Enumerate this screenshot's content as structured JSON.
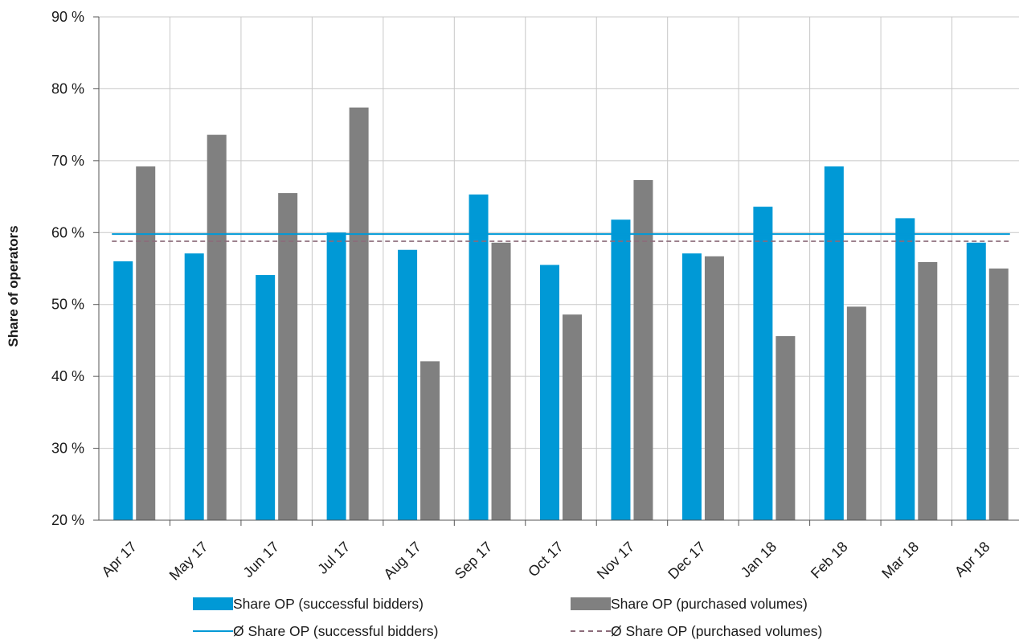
{
  "chart_data": {
    "type": "bar",
    "ylabel": "Share of operators",
    "xlabel": "",
    "ylim": [
      20,
      90
    ],
    "yticks": [
      20,
      30,
      40,
      50,
      60,
      70,
      80,
      90
    ],
    "ytick_suffix": " %",
    "grid": "vertical and horizontal",
    "legend_position": "bottom",
    "categories": [
      "Apr 17",
      "May 17",
      "Jun 17",
      "Jul 17",
      "Aug 17",
      "Sep 17",
      "Oct 17",
      "Nov 17",
      "Dec 17",
      "Jan 18",
      "Feb 18",
      "Mar 18",
      "Apr 18"
    ],
    "series": [
      {
        "name": "Share OP (successful bidders)",
        "type": "bar",
        "color": "#0099d6",
        "values": [
          56.0,
          57.1,
          54.1,
          60.0,
          57.6,
          65.3,
          55.5,
          61.8,
          57.1,
          63.6,
          69.2,
          62.0,
          58.6
        ]
      },
      {
        "name": "Share OP (purchased volumes)",
        "type": "bar",
        "color": "#808080",
        "values": [
          69.2,
          73.6,
          65.5,
          77.4,
          42.1,
          58.6,
          48.6,
          67.3,
          56.7,
          45.6,
          49.7,
          55.9,
          55.0
        ]
      },
      {
        "name": "Ø Share OP (successful bidders)",
        "type": "line",
        "style": "solid",
        "color": "#0099d6",
        "value": 59.8
      },
      {
        "name": "Ø Share OP (purchased volumes)",
        "type": "line",
        "style": "dashed",
        "color": "#8c6b7a",
        "value": 58.8
      }
    ]
  }
}
